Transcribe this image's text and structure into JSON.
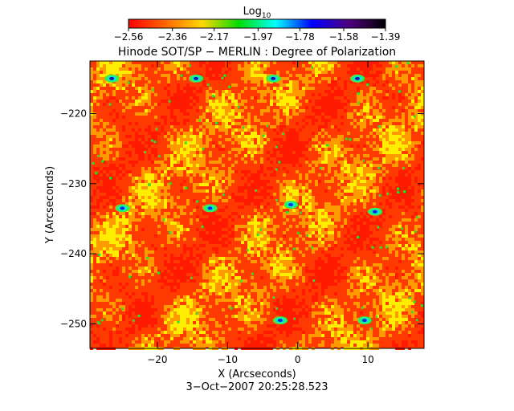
{
  "chart_data": {
    "type": "heatmap",
    "title": "Hinode SOT/SP − MERLIN : Degree of Polarization",
    "xlabel": "X (Arcseconds)",
    "ylabel": "Y (Arcseconds)",
    "date_label": "3−Oct−2007 20:25:28.523",
    "xlim": [
      -29.6,
      18.0
    ],
    "ylim": [
      -253.5,
      -212.5
    ],
    "x_ticks": [
      -20,
      -10,
      0,
      10
    ],
    "y_ticks": [
      -220,
      -230,
      -240,
      -250
    ],
    "x_tick_labels": [
      "−20",
      "−10",
      "0",
      "10"
    ],
    "y_tick_labels": [
      "−220",
      "−230",
      "−240",
      "−250"
    ],
    "colorbar": {
      "label_base": "Log",
      "label_sub": "10",
      "range": [
        -2.56,
        -1.39
      ],
      "ticks": [
        -2.56,
        -2.36,
        -2.17,
        -1.97,
        -1.78,
        -1.58,
        -1.39
      ],
      "tick_labels": [
        "−2.56",
        "−2.36",
        "−2.17",
        "−1.97",
        "−1.78",
        "−1.58",
        "−1.39"
      ],
      "colormap": [
        "#ff0000",
        "#ff6600",
        "#ffd700",
        "#00dd00",
        "#00ffff",
        "#0000ff",
        "#500080",
        "#000000"
      ]
    },
    "field_description_colors": {
      "background": "#ff3a00",
      "mid": "#ff9900",
      "bright": "#ffee00"
    },
    "strong_polarization_patches": [
      {
        "x": -26.5,
        "y": -215.0,
        "value": -1.6
      },
      {
        "x": -14.5,
        "y": -215.0,
        "value": -1.6
      },
      {
        "x": -3.5,
        "y": -215.0,
        "value": -1.6
      },
      {
        "x": 8.5,
        "y": -215.0,
        "value": -1.6
      },
      {
        "x": -25.0,
        "y": -233.5,
        "value": -1.7
      },
      {
        "x": -12.5,
        "y": -233.5,
        "value": -1.7
      },
      {
        "x": -1.0,
        "y": -233.0,
        "value": -1.8
      },
      {
        "x": 11.0,
        "y": -234.0,
        "value": -1.7
      },
      {
        "x": -2.5,
        "y": -249.5,
        "value": -1.7
      },
      {
        "x": 9.5,
        "y": -249.5,
        "value": -1.7
      }
    ]
  }
}
